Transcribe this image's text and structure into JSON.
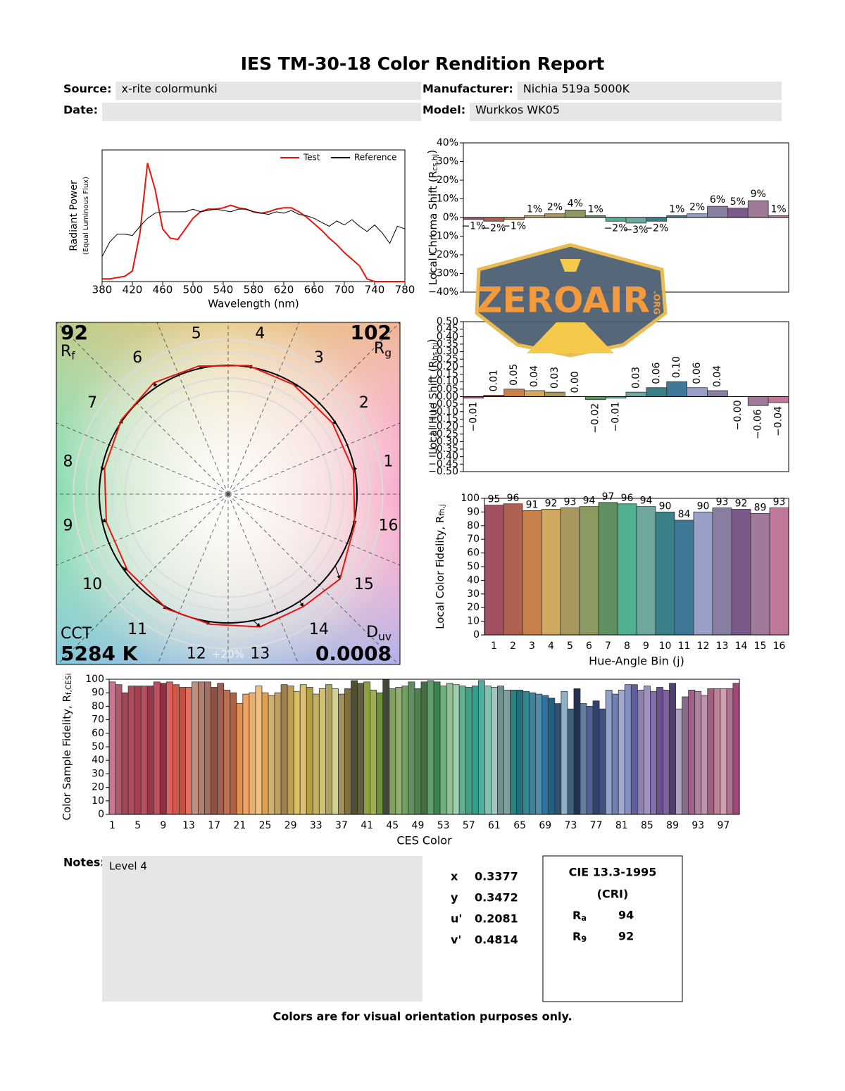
{
  "report": {
    "title": "IES TM-30-18 Color Rendition Report",
    "fields": [
      {
        "label": "Source:",
        "value": "x-rite colormunki"
      },
      {
        "label": "Manufacturer:",
        "value": "Nichia 519a 5000K"
      },
      {
        "label": "Date:"
      },
      {
        "label": "Model:",
        "value": "Wurkkos WK05"
      }
    ],
    "notes_label": "Notes:",
    "notes": "Level 4",
    "chromaticity": [
      {
        "label": "x",
        "value": "0.3377"
      },
      {
        "label": "y",
        "value": "0.3472"
      },
      {
        "label": "u'",
        "value": "0.2081"
      },
      {
        "label": "v'",
        "value": "0.4814"
      }
    ],
    "cri": {
      "title": "CIE 13.3-1995",
      "subtitle": "(CRI)",
      "rows": [
        {
          "label": {
            "main": "R",
            "sub": "a"
          },
          "value": "94"
        },
        {
          "label": {
            "main": "R",
            "sub": "9"
          },
          "value": "92"
        }
      ]
    },
    "footer": "Colors are for visual orientation purposes only.",
    "watermark": {
      "text": "ZEROAIR",
      "suffix": ".ORG"
    }
  },
  "chart_data": [
    {
      "type": "line",
      "x": [
        380,
        390,
        400,
        410,
        420,
        430,
        440,
        450,
        460,
        470,
        480,
        490,
        500,
        510,
        520,
        530,
        540,
        550,
        560,
        570,
        580,
        590,
        600,
        610,
        620,
        630,
        640,
        650,
        660,
        670,
        680,
        690,
        700,
        710,
        720,
        730,
        740,
        750,
        760,
        770,
        780
      ],
      "series": [
        {
          "name": "Test",
          "color": "#e8140e",
          "values": [
            0.02,
            0.02,
            0.03,
            0.04,
            0.08,
            0.37,
            0.9,
            0.7,
            0.4,
            0.33,
            0.32,
            0.4,
            0.48,
            0.53,
            0.55,
            0.55,
            0.56,
            0.58,
            0.56,
            0.55,
            0.53,
            0.52,
            0.53,
            0.55,
            0.56,
            0.56,
            0.53,
            0.49,
            0.44,
            0.39,
            0.33,
            0.28,
            0.22,
            0.17,
            0.12,
            0.02,
            0,
            0,
            0,
            0,
            0
          ]
        },
        {
          "name": "Reference",
          "color": "#000000",
          "values": [
            0.19,
            0.3,
            0.36,
            0.36,
            0.35,
            0.42,
            0.48,
            0.52,
            0.53,
            0.53,
            0.53,
            0.53,
            0.55,
            0.53,
            0.54,
            0.55,
            0.54,
            0.53,
            0.55,
            0.55,
            0.53,
            0.52,
            0.51,
            0.53,
            0.52,
            0.54,
            0.51,
            0.5,
            0.48,
            0.45,
            0.42,
            0.46,
            0.43,
            0.47,
            0.42,
            0.38,
            0.43,
            0.37,
            0.29,
            0.42,
            0.4
          ]
        }
      ],
      "xlim": [
        380,
        780
      ],
      "xticks": [
        380,
        420,
        460,
        500,
        540,
        580,
        620,
        660,
        700,
        740,
        780
      ],
      "ylim": [
        0,
        1
      ],
      "xlabel": "Wavelength (nm)",
      "ylabel": "Radiant Power",
      "ylabel_note": "(Equal Luminous Flux)",
      "legend": "upper right"
    },
    {
      "type": "bar",
      "values": [
        -1,
        -2,
        -1,
        1,
        2,
        4,
        1,
        -2,
        -3,
        -2,
        1,
        2,
        6,
        5,
        9,
        1
      ],
      "value_labels": [
        "−1%",
        "−2%",
        "−1%",
        "1%",
        "2%",
        "4%",
        "1%",
        "−2%",
        "−3%",
        "−2%",
        "1%",
        "2%",
        "6%",
        "5%",
        "9%",
        "1%"
      ],
      "colors": [
        "#a35060",
        "#b06050",
        "#c8804a",
        "#d0a860",
        "#a89860",
        "#8a9a60",
        "#5f9060",
        "#50b090",
        "#70a8a0",
        "#3a8088",
        "#407898",
        "#98a0c8",
        "#8a7ea0",
        "#7a5a88",
        "#a07898",
        "#c07898"
      ],
      "ylim": [
        -40,
        40
      ],
      "yticks": [
        {
          "value": 40,
          "label": "40%"
        },
        {
          "value": 30,
          "label": "30%"
        },
        {
          "value": 20,
          "label": "20%"
        },
        {
          "value": 10,
          "label": "10%"
        },
        {
          "value": 0,
          "label": "0%"
        },
        {
          "value": -10,
          "label": "−10%"
        },
        {
          "value": -20,
          "label": "−20%"
        },
        {
          "value": -30,
          "label": "−30%"
        },
        {
          "value": -40,
          "label": "−40%"
        }
      ],
      "ylabel": [
        "Local Chroma Shift (R",
        "cs,hj",
        ")"
      ]
    },
    {
      "type": "bar",
      "values": [
        -0.01,
        0.01,
        0.05,
        0.04,
        0.03,
        0,
        -0.02,
        -0.01,
        0.03,
        0.06,
        0.1,
        0.06,
        0.04,
        -0.0,
        -0.06,
        -0.04
      ],
      "value_labels": [
        "−0.01",
        "0.01",
        "0.05",
        "0.04",
        "0.03",
        "0.00",
        "−0.02",
        "−0.01",
        "0.03",
        "0.06",
        "0.10",
        "0.06",
        "0.04",
        "−0.00",
        "−0.06",
        "−0.04"
      ],
      "colors": [
        "#a35060",
        "#b06050",
        "#c8804a",
        "#d0a860",
        "#a89860",
        "#8a9a60",
        "#5f9060",
        "#50b090",
        "#70a8a0",
        "#3a8088",
        "#407898",
        "#98a0c8",
        "#8a7ea0",
        "#7a5a88",
        "#a07898",
        "#c07898"
      ],
      "ylim": [
        -0.5,
        0.5
      ],
      "yticks": [
        {
          "value": 0.5,
          "label": "0.50"
        },
        {
          "value": 0.45,
          "label": "0.45"
        },
        {
          "value": 0.4,
          "label": "0.40"
        },
        {
          "value": 0.35,
          "label": "0.35"
        },
        {
          "value": 0.3,
          "label": "0.30"
        },
        {
          "value": 0.25,
          "label": "0.25"
        },
        {
          "value": 0.2,
          "label": "0.20"
        },
        {
          "value": 0.15,
          "label": "0.15"
        },
        {
          "value": 0.1,
          "label": "0.10"
        },
        {
          "value": 0.05,
          "label": "0.05"
        },
        {
          "value": 0,
          "label": "0.00"
        },
        {
          "value": -0.05,
          "label": "−0.05"
        },
        {
          "value": -0.1,
          "label": "−0.10"
        },
        {
          "value": -0.15,
          "label": "−0.15"
        },
        {
          "value": -0.2,
          "label": "−0.20"
        },
        {
          "value": -0.25,
          "label": "−0.25"
        },
        {
          "value": -0.3,
          "label": "−0.30"
        },
        {
          "value": -0.35,
          "label": "−0.35"
        },
        {
          "value": -0.4,
          "label": "−0.40"
        },
        {
          "value": -0.45,
          "label": "−0.45"
        },
        {
          "value": -0.5,
          "label": "−0.50"
        }
      ],
      "ylabel": [
        "Local Hue Shift (R",
        "hs,hj",
        ")"
      ]
    },
    {
      "type": "bar",
      "categories": [
        1,
        2,
        3,
        4,
        5,
        6,
        7,
        8,
        9,
        10,
        11,
        12,
        13,
        14,
        15,
        16
      ],
      "values": [
        95,
        96,
        91,
        92,
        93,
        94,
        97,
        96,
        94,
        90,
        84,
        90,
        93,
        92,
        89,
        93
      ],
      "colors": [
        "#a35060",
        "#b06050",
        "#c8804a",
        "#d0a860",
        "#a89860",
        "#8a9a60",
        "#5f9060",
        "#50b090",
        "#70a8a0",
        "#3a8088",
        "#407898",
        "#98a0c8",
        "#8a7ea0",
        "#7a5a88",
        "#a07898",
        "#c07898"
      ],
      "ylim": [
        0,
        100
      ],
      "yticks": [
        0,
        10,
        20,
        30,
        40,
        50,
        60,
        70,
        80,
        90,
        100
      ],
      "xlabel": "Hue-Angle Bin (j)",
      "ylabel": [
        "Local Color Fidelity, R",
        "fh,j"
      ]
    },
    {
      "type": "vector",
      "categories": [
        1,
        2,
        3,
        4,
        5,
        6,
        7,
        8,
        9,
        10,
        11,
        12,
        13,
        14,
        15,
        16
      ],
      "fidelity_index": 92,
      "fidelity_label": {
        "main": "R",
        "sub": "f"
      },
      "gamut_index": 102,
      "gamut_label": {
        "main": "R",
        "sub": "g"
      },
      "cct_label": "CCT",
      "cct": "5284 K",
      "duv_label": {
        "main": "D",
        "sub": "uv"
      },
      "duv": "0.0008",
      "scale_label": "+20%"
    },
    {
      "type": "bar",
      "categories": [
        1,
        null,
        null,
        null,
        5,
        null,
        null,
        null,
        9,
        null,
        null,
        null,
        13,
        null,
        null,
        null,
        17,
        null,
        null,
        null,
        21,
        null,
        null,
        null,
        25,
        null,
        null,
        null,
        29,
        null,
        null,
        null,
        33,
        null,
        null,
        null,
        37,
        null,
        null,
        null,
        41,
        null,
        null,
        null,
        45,
        null,
        null,
        null,
        49,
        null,
        null,
        null,
        53,
        null,
        null,
        null,
        57,
        null,
        null,
        null,
        61,
        null,
        null,
        null,
        65,
        null,
        null,
        null,
        69,
        null,
        null,
        null,
        73,
        null,
        null,
        null,
        77,
        null,
        null,
        null,
        81,
        null,
        null,
        null,
        85,
        null,
        null,
        null,
        89,
        null,
        null,
        null,
        93,
        null,
        null,
        null,
        97,
        null,
        null
      ],
      "values": [
        98,
        96,
        90,
        95,
        95,
        95,
        95,
        98,
        97,
        98,
        96,
        94,
        94,
        98,
        98,
        98,
        94,
        97,
        92,
        90,
        82,
        89,
        90,
        95,
        90,
        88,
        90,
        96,
        95,
        91,
        96,
        94,
        89,
        93,
        96,
        93,
        89,
        93,
        99,
        97,
        98,
        92,
        90,
        100,
        93,
        94,
        95,
        98,
        93,
        98,
        99,
        98,
        95,
        97,
        96,
        95,
        94,
        95,
        99,
        95,
        94,
        95,
        92,
        92,
        92,
        91,
        90,
        89,
        88,
        86,
        82,
        91,
        78,
        93,
        82,
        80,
        84,
        78,
        92,
        89,
        92,
        96,
        96,
        92,
        95,
        91,
        94,
        92,
        97,
        78,
        87,
        92,
        91,
        88,
        93,
        93,
        93,
        93,
        97
      ],
      "colors": [
        "#c87890",
        "#b05a70",
        "#a04858",
        "#b04a5a",
        "#a84050",
        "#b85060",
        "#983848",
        "#c05060",
        "#8a3040",
        "#e06060",
        "#d05848",
        "#c85040",
        "#e07060",
        "#c09080",
        "#b08070",
        "#a07060",
        "#905040",
        "#a06050",
        "#c07050",
        "#b06040",
        "#e09050",
        "#f0a060",
        "#e8b070",
        "#f0c080",
        "#e0a050",
        "#d0b070",
        "#c0a060",
        "#a08050",
        "#c0a050",
        "#d8c060",
        "#e0c070",
        "#b0a040",
        "#c0b060",
        "#d0c070",
        "#b0a060",
        "#d0d090",
        "#a09060",
        "#807040",
        "#505030",
        "#606040",
        "#90a040",
        "#a0b050",
        "#70903a",
        "#404838",
        "#80a060",
        "#90b070",
        "#70a060",
        "#609060",
        "#508050",
        "#407040",
        "#60a070",
        "#3a8050",
        "#70b080",
        "#90c090",
        "#a0d0b0",
        "#60b090",
        "#40a080",
        "#30a090",
        "#50b0a0",
        "#80c0b0",
        "#a0c8c0",
        "#709090",
        "#80a0a0",
        "#308080",
        "#207080",
        "#308890",
        "#40809a",
        "#5090a8",
        "#3070a0",
        "#206080",
        "#305070",
        "#90b0c8",
        "#406080",
        "#203050",
        "#6080a0",
        "#506090",
        "#304070",
        "#405080",
        "#90a0c8",
        "#7080b0",
        "#a0a8d0",
        "#8090c0",
        "#6060a0",
        "#9080b0",
        "#a090c0",
        "#8070a8",
        "#6a5090",
        "#8060a0",
        "#504070",
        "#b0a0c0",
        "#8a6a8a",
        "#a06088",
        "#b080a0",
        "#c090b0",
        "#a06080",
        "#c08098",
        "#d0a0b0",
        "#b07090",
        "#a04878"
      ],
      "ylim": [
        0,
        100
      ],
      "yticks": [
        0,
        10,
        20,
        30,
        40,
        50,
        60,
        70,
        80,
        90,
        100
      ],
      "xlabel": "CES Color",
      "ylabel": [
        "Color Sample Fidelity, R",
        "f,CESi"
      ]
    }
  ]
}
